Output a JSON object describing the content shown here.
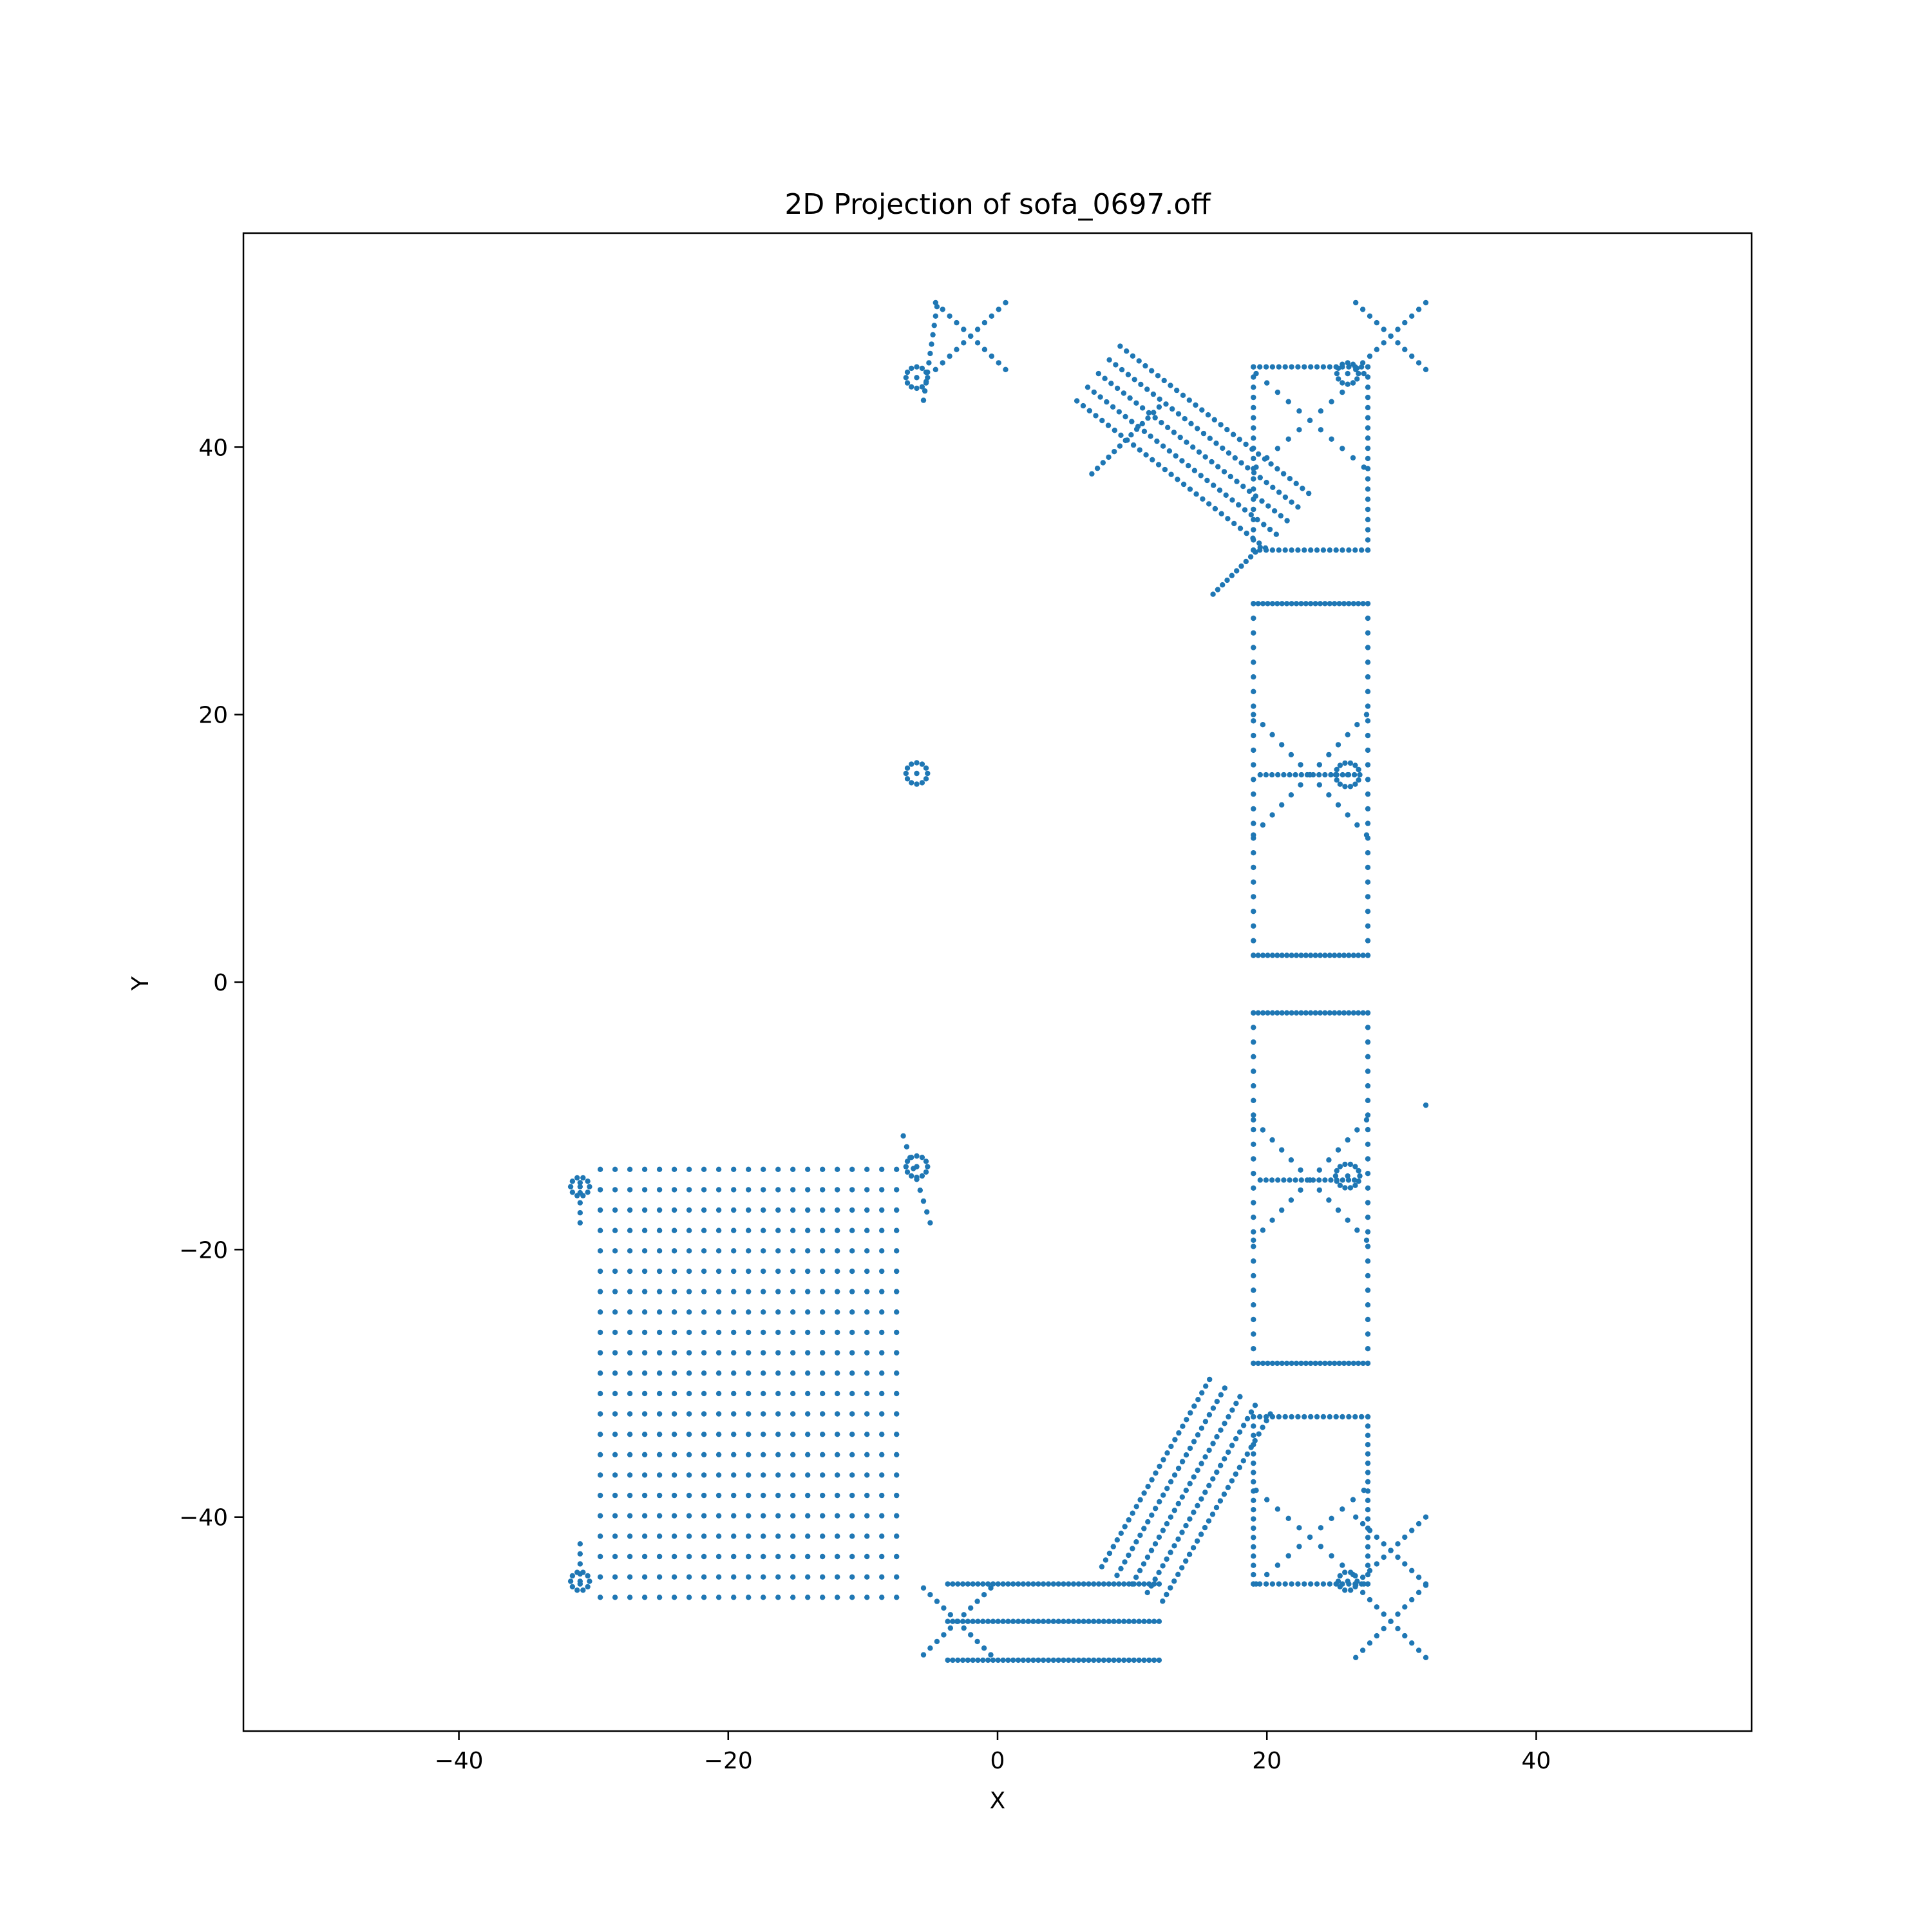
{
  "chart_data": {
    "type": "scatter",
    "title": "2D Projection of sofa_0697.off",
    "xlabel": "X",
    "ylabel": "Y",
    "xlim": [
      -56,
      56
    ],
    "ylim": [
      -56,
      56
    ],
    "xticks": [
      -40,
      -20,
      0,
      20,
      40
    ],
    "yticks": [
      -40,
      -20,
      0,
      20,
      40
    ],
    "xtick_labels": [
      "−40",
      "−20",
      "0",
      "20",
      "40"
    ],
    "ytick_labels": [
      "−40",
      "−20",
      "0",
      "20",
      "40"
    ],
    "grid": false,
    "legend": "none",
    "marker_color": "#1f77b4",
    "clusters": [
      {
        "shape": "grid",
        "x0": -29.5,
        "x1": -7.5,
        "y0": -46,
        "y1": -14,
        "nx": 21,
        "ny": 22
      },
      {
        "shape": "hlines",
        "x0": -3.7,
        "x1": 12,
        "ys": [
          -45,
          -47.8,
          -50.7
        ],
        "n": 42
      },
      {
        "shape": "band",
        "x0": 10,
        "y0": -45,
        "x1": 18,
        "y1": -31,
        "w": 2.6,
        "rows": 28,
        "cols": 5
      },
      {
        "shape": "band",
        "x0": 7.5,
        "y0": 45.5,
        "x1": 21.5,
        "y1": 34.5,
        "w": 2.6,
        "rows": 30,
        "cols": 5
      },
      {
        "shape": "line",
        "x0": 7,
        "y0": 38,
        "x1": 12,
        "y1": 43,
        "n": 12
      },
      {
        "shape": "line",
        "x0": 16,
        "y0": 29,
        "x1": 19.5,
        "y1": 32.5,
        "n": 10
      },
      {
        "shape": "rect",
        "x0": 19,
        "x1": 27.5,
        "y0": 2,
        "y1": 28.3,
        "n": 24
      },
      {
        "shape": "rect",
        "x0": 19,
        "x1": 27.5,
        "y0": -28.5,
        "y1": -2.3,
        "n": 24
      },
      {
        "shape": "rect",
        "x0": 19,
        "x1": 27.5,
        "y0": 32.3,
        "y1": 46,
        "n": 18
      },
      {
        "shape": "rect",
        "x0": 19,
        "x1": 27.5,
        "y0": -45,
        "y1": -32.5,
        "n": 18
      },
      {
        "shape": "xmark",
        "cx": 23.2,
        "cy": 15.5,
        "hx": 4.2,
        "hy": 4.5,
        "n": 12
      },
      {
        "shape": "xmark",
        "cx": 23.2,
        "cy": -14.8,
        "hx": 4.2,
        "hy": 4.5,
        "n": 12
      },
      {
        "shape": "xmark",
        "cx": 23.2,
        "cy": 42,
        "hx": 4,
        "hy": 3.5,
        "n": 10
      },
      {
        "shape": "xmark",
        "cx": 23.2,
        "cy": -41.5,
        "hx": 4,
        "hy": 3.5,
        "n": 10
      },
      {
        "shape": "xmark",
        "cx": 29.2,
        "cy": 48.3,
        "hx": 2.6,
        "hy": 2.5,
        "n": 10
      },
      {
        "shape": "xmark",
        "cx": 29.2,
        "cy": -47.8,
        "hx": 2.6,
        "hy": 2.7,
        "n": 10
      },
      {
        "shape": "xmark",
        "cx": -2,
        "cy": 48.3,
        "hx": 2.6,
        "hy": 2.5,
        "n": 10
      },
      {
        "shape": "xmark",
        "cx": -3,
        "cy": -47.8,
        "hx": 2.5,
        "hy": 2.5,
        "n": 10
      },
      {
        "shape": "xmark",
        "cx": 29.2,
        "cy": -42.5,
        "hx": 2.6,
        "hy": 2.5,
        "n": 10
      },
      {
        "shape": "line",
        "x0": 19.5,
        "y0": 15.5,
        "x1": 26.5,
        "y1": 15.5,
        "n": 16
      },
      {
        "shape": "line",
        "x0": 19.5,
        "y0": -14.8,
        "x1": 26.5,
        "y1": -14.8,
        "n": 16
      },
      {
        "shape": "line",
        "x0": -5.5,
        "y0": 43.5,
        "x1": -4.5,
        "y1": 50.5,
        "n": 10
      },
      {
        "shape": "line",
        "x0": -7,
        "y0": -11.5,
        "x1": -5,
        "y1": -18,
        "n": 8
      },
      {
        "shape": "line",
        "x0": -31,
        "y0": -42,
        "x1": -31,
        "y1": -45,
        "n": 4
      },
      {
        "shape": "line",
        "x0": -31,
        "y0": -15,
        "x1": -31,
        "y1": -18,
        "n": 4
      },
      {
        "shape": "blob",
        "cx": -6,
        "cy": 45.2,
        "r": 0.8,
        "n": 12
      },
      {
        "shape": "blob",
        "cx": -6,
        "cy": 15.6,
        "r": 0.8,
        "n": 12
      },
      {
        "shape": "blob",
        "cx": -6,
        "cy": -13.8,
        "r": 0.8,
        "n": 12
      },
      {
        "shape": "blob",
        "cx": 26,
        "cy": 45.5,
        "r": 0.8,
        "n": 12
      },
      {
        "shape": "blob",
        "cx": 26,
        "cy": 15.5,
        "r": 0.9,
        "n": 14
      },
      {
        "shape": "blob",
        "cx": 26,
        "cy": -14.5,
        "r": 0.9,
        "n": 14
      },
      {
        "shape": "blob",
        "cx": 26,
        "cy": -44.8,
        "r": 0.7,
        "n": 10
      },
      {
        "shape": "blob",
        "cx": -31,
        "cy": -15.3,
        "r": 0.7,
        "n": 10
      },
      {
        "shape": "blob",
        "cx": -31,
        "cy": -44.8,
        "r": 0.7,
        "n": 10
      },
      {
        "shape": "single",
        "x": 31.8,
        "y": -9.2
      }
    ]
  }
}
